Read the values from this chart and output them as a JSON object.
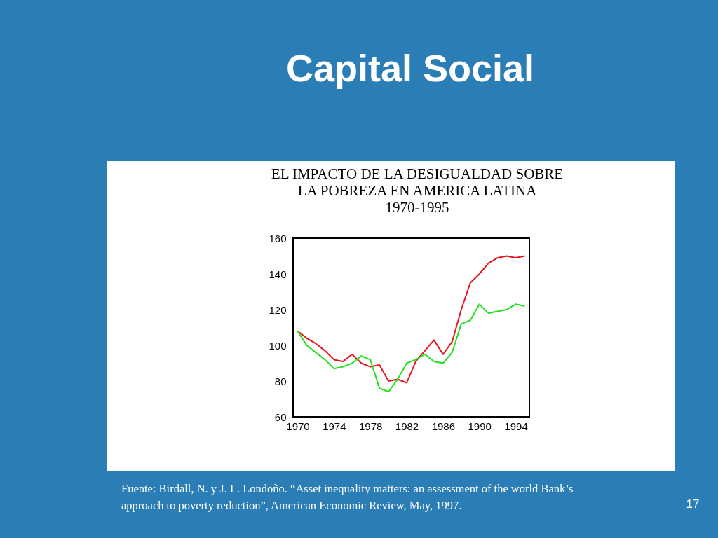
{
  "chart_data": {
    "type": "line",
    "title": "Capital Social",
    "subtitle": "EL IMPACTO DE LA DESIGUALDAD SOBRE LA POBREZA EN AMERICA LATINA 1970-1995",
    "x": [
      1970,
      1971,
      1972,
      1973,
      1974,
      1975,
      1976,
      1977,
      1978,
      1979,
      1980,
      1981,
      1982,
      1983,
      1984,
      1985,
      1986,
      1987,
      1988,
      1989,
      1990,
      1991,
      1992,
      1993,
      1994,
      1995
    ],
    "series": [
      {
        "color": "#e8141e",
        "values": [
          108,
          104,
          101,
          97,
          92,
          91,
          95,
          90,
          88,
          89,
          80,
          81,
          79,
          91,
          97,
          103,
          95,
          102,
          120,
          135,
          140,
          146,
          149,
          150,
          149,
          150
        ]
      },
      {
        "color": "#22e01e",
        "values": [
          108,
          100,
          96,
          92,
          87,
          88,
          90,
          94,
          92,
          76,
          74,
          81,
          90,
          92,
          95,
          91,
          90,
          96,
          112,
          114,
          123,
          118,
          119,
          120,
          123,
          122
        ]
      }
    ],
    "xlim": [
      1969.5,
      1995.5
    ],
    "xticks": [
      1970,
      1974,
      1978,
      1982,
      1986,
      1990,
      1994
    ],
    "ylim": [
      60,
      160
    ],
    "yticks": [
      60,
      80,
      100,
      120,
      140,
      160
    ],
    "grid": false,
    "legend": false,
    "marker": "none",
    "line_style": "solid",
    "annotations": [
      "Fuente:  Birdall, N. y J. L. Londoño.  “Asset inequality matters:  an assessment of the world Bank’s approach to poverty reduction”, American Economic Review, May, 1997.",
      "17"
    ]
  }
}
